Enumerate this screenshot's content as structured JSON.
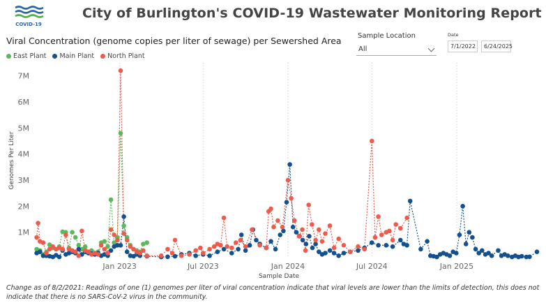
{
  "header": {
    "logo_text": "COVID-19",
    "title": "City of Burlington's COVID-19 Wastewater Monitoring Report"
  },
  "filters": {
    "sample_location_label": "Sample Location",
    "sample_location_value": "All",
    "date_label": "Date",
    "date_start": "7/1/2022",
    "date_end": "6/24/2025"
  },
  "footnote": "Change as of 8/2/2021: Readings of one (1) genomes per liter of viral concentration indicate that viral levels are lower than the limits of detection, this does not indicate that there is no SARS-CoV-2 virus in the community.",
  "colors": {
    "East Plant": "#5bb85b",
    "Main Plant": "#12508f",
    "North Plant": "#ec5b4b",
    "logo_blue": "#2a63a8",
    "logo_green": "#4fae4f"
  },
  "chart_data": {
    "type": "scatter",
    "title": "Viral Concentration (genome copies per liter of sewage) per Sewershed Area",
    "xlabel": "Sample Date",
    "ylabel": "Genomes Per Liter",
    "x_type": "date",
    "xlim": [
      "2022-07-01",
      "2025-06-24"
    ],
    "ylim": [
      0,
      7500000
    ],
    "y_ticks": [
      1000000,
      2000000,
      3000000,
      4000000,
      5000000,
      6000000,
      7000000
    ],
    "y_tick_labels": [
      "1M",
      "2M",
      "3M",
      "4M",
      "5M",
      "6M",
      "7M"
    ],
    "x_ticks": [
      "2023-01-01",
      "2023-07-01",
      "2024-01-01",
      "2024-07-01",
      "2025-01-01"
    ],
    "x_tick_labels": [
      "Jan 2023",
      "Jul 2023",
      "Jan 2024",
      "Jul 2024",
      "Jan 2025"
    ],
    "legend": "top-left",
    "grid": "vertical dotted",
    "series": [
      {
        "name": "East Plant",
        "points": [
          [
            "2022-07-05",
            350000
          ],
          [
            "2022-07-12",
            300000
          ],
          [
            "2022-07-19",
            150000
          ],
          [
            "2022-07-26",
            250000
          ],
          [
            "2022-08-02",
            520000
          ],
          [
            "2022-08-09",
            400000
          ],
          [
            "2022-08-16",
            350000
          ],
          [
            "2022-08-23",
            450000
          ],
          [
            "2022-08-30",
            1020000
          ],
          [
            "2022-09-06",
            1000000
          ],
          [
            "2022-09-13",
            400000
          ],
          [
            "2022-09-20",
            1000000
          ],
          [
            "2022-09-27",
            800000
          ],
          [
            "2022-10-04",
            500000
          ],
          [
            "2022-10-11",
            350000
          ],
          [
            "2022-10-18",
            450000
          ],
          [
            "2022-10-25",
            250000
          ],
          [
            "2022-11-01",
            300000
          ],
          [
            "2022-11-08",
            200000
          ],
          [
            "2022-11-15",
            250000
          ],
          [
            "2022-11-22",
            600000
          ],
          [
            "2022-11-29",
            650000
          ],
          [
            "2022-12-06",
            450000
          ],
          [
            "2022-12-13",
            2250000
          ],
          [
            "2022-12-20",
            600000
          ],
          [
            "2022-12-27",
            800000
          ],
          [
            "2023-01-03",
            4800000
          ],
          [
            "2023-01-10",
            1250000
          ],
          [
            "2023-01-17",
            800000
          ],
          [
            "2023-01-24",
            500000
          ],
          [
            "2023-01-31",
            350000
          ],
          [
            "2023-02-07",
            300000
          ],
          [
            "2023-02-14",
            250000
          ],
          [
            "2023-02-21",
            550000
          ],
          [
            "2023-03-01",
            600000
          ]
        ]
      },
      {
        "name": "Main Plant",
        "points": [
          [
            "2022-07-05",
            200000
          ],
          [
            "2022-07-12",
            250000
          ],
          [
            "2022-07-19",
            100000
          ],
          [
            "2022-07-26",
            100000
          ],
          [
            "2022-08-02",
            80000
          ],
          [
            "2022-08-09",
            50000
          ],
          [
            "2022-08-16",
            120000
          ],
          [
            "2022-08-23",
            50000
          ],
          [
            "2022-08-30",
            300000
          ],
          [
            "2022-09-06",
            150000
          ],
          [
            "2022-09-13",
            200000
          ],
          [
            "2022-09-20",
            250000
          ],
          [
            "2022-09-27",
            200000
          ],
          [
            "2022-10-04",
            350000
          ],
          [
            "2022-10-11",
            150000
          ],
          [
            "2022-10-18",
            250000
          ],
          [
            "2022-10-25",
            200000
          ],
          [
            "2022-11-01",
            180000
          ],
          [
            "2022-11-08",
            150000
          ],
          [
            "2022-11-15",
            200000
          ],
          [
            "2022-11-22",
            100000
          ],
          [
            "2022-11-29",
            150000
          ],
          [
            "2022-12-06",
            100000
          ],
          [
            "2022-12-13",
            300000
          ],
          [
            "2022-12-20",
            450000
          ],
          [
            "2022-12-27",
            500000
          ],
          [
            "2023-01-03",
            500000
          ],
          [
            "2023-01-10",
            1600000
          ],
          [
            "2023-01-17",
            250000
          ],
          [
            "2023-01-24",
            100000
          ],
          [
            "2023-01-31",
            80000
          ],
          [
            "2023-02-07",
            150000
          ],
          [
            "2023-02-14",
            100000
          ],
          [
            "2023-03-01",
            80000
          ],
          [
            "2023-04-01",
            50000
          ],
          [
            "2023-04-15",
            60000
          ],
          [
            "2023-05-01",
            80000
          ],
          [
            "2023-05-15",
            150000
          ],
          [
            "2023-06-01",
            200000
          ],
          [
            "2023-06-15",
            100000
          ],
          [
            "2023-07-01",
            150000
          ],
          [
            "2023-07-15",
            100000
          ],
          [
            "2023-08-01",
            250000
          ],
          [
            "2023-08-15",
            350000
          ],
          [
            "2023-09-01",
            200000
          ],
          [
            "2023-09-15",
            350000
          ],
          [
            "2023-09-22",
            900000
          ],
          [
            "2023-10-01",
            300000
          ],
          [
            "2023-10-10",
            500000
          ],
          [
            "2023-10-17",
            1100000
          ],
          [
            "2023-10-24",
            700000
          ],
          [
            "2023-11-01",
            550000
          ],
          [
            "2023-11-15",
            400000
          ],
          [
            "2023-11-25",
            650000
          ],
          [
            "2023-12-05",
            350000
          ],
          [
            "2023-12-15",
            900000
          ],
          [
            "2023-12-22",
            1050000
          ],
          [
            "2023-12-29",
            2150000
          ],
          [
            "2024-01-05",
            3600000
          ],
          [
            "2024-01-12",
            1200000
          ],
          [
            "2024-01-19",
            1000000
          ],
          [
            "2024-01-26",
            850000
          ],
          [
            "2024-02-02",
            700000
          ],
          [
            "2024-02-09",
            550000
          ],
          [
            "2024-02-16",
            850000
          ],
          [
            "2024-02-23",
            400000
          ],
          [
            "2024-03-01",
            550000
          ],
          [
            "2024-03-08",
            250000
          ],
          [
            "2024-03-15",
            150000
          ],
          [
            "2024-03-22",
            200000
          ],
          [
            "2024-04-01",
            300000
          ],
          [
            "2024-04-10",
            200000
          ],
          [
            "2024-04-20",
            100000
          ],
          [
            "2024-05-01",
            200000
          ],
          [
            "2024-05-15",
            250000
          ],
          [
            "2024-06-01",
            300000
          ],
          [
            "2024-06-15",
            400000
          ],
          [
            "2024-07-01",
            600000
          ],
          [
            "2024-07-15",
            500000
          ],
          [
            "2024-08-01",
            500000
          ],
          [
            "2024-08-15",
            450000
          ],
          [
            "2024-09-01",
            700000
          ],
          [
            "2024-09-08",
            550000
          ],
          [
            "2024-09-15",
            500000
          ],
          [
            "2024-09-22",
            2200000
          ],
          [
            "2024-10-15",
            350000
          ],
          [
            "2024-10-29",
            650000
          ],
          [
            "2024-11-05",
            100000
          ],
          [
            "2024-11-12",
            80000
          ],
          [
            "2024-11-19",
            50000
          ],
          [
            "2024-11-26",
            150000
          ],
          [
            "2024-12-03",
            200000
          ],
          [
            "2024-12-10",
            150000
          ],
          [
            "2024-12-17",
            100000
          ],
          [
            "2024-12-24",
            250000
          ],
          [
            "2024-12-31",
            200000
          ],
          [
            "2025-01-07",
            900000
          ],
          [
            "2025-01-14",
            2000000
          ],
          [
            "2025-01-21",
            550000
          ],
          [
            "2025-01-28",
            1000000
          ],
          [
            "2025-02-04",
            800000
          ],
          [
            "2025-02-11",
            350000
          ],
          [
            "2025-02-18",
            200000
          ],
          [
            "2025-02-25",
            300000
          ],
          [
            "2025-03-04",
            150000
          ],
          [
            "2025-03-11",
            200000
          ],
          [
            "2025-03-18",
            100000
          ],
          [
            "2025-04-01",
            300000
          ],
          [
            "2025-04-08",
            100000
          ],
          [
            "2025-04-15",
            150000
          ],
          [
            "2025-04-22",
            100000
          ],
          [
            "2025-05-01",
            50000
          ],
          [
            "2025-05-08",
            100000
          ],
          [
            "2025-05-15",
            50000
          ],
          [
            "2025-05-22",
            80000
          ],
          [
            "2025-06-01",
            50000
          ],
          [
            "2025-06-08",
            60000
          ],
          [
            "2025-06-24",
            250000
          ]
        ]
      },
      {
        "name": "North Plant",
        "points": [
          [
            "2022-07-05",
            800000
          ],
          [
            "2022-07-08",
            1350000
          ],
          [
            "2022-07-12",
            650000
          ],
          [
            "2022-07-19",
            600000
          ],
          [
            "2022-07-26",
            200000
          ],
          [
            "2022-08-02",
            350000
          ],
          [
            "2022-08-09",
            450000
          ],
          [
            "2022-08-16",
            350000
          ],
          [
            "2022-08-23",
            400000
          ],
          [
            "2022-08-30",
            350000
          ],
          [
            "2022-09-06",
            900000
          ],
          [
            "2022-09-13",
            350000
          ],
          [
            "2022-09-20",
            300000
          ],
          [
            "2022-09-27",
            250000
          ],
          [
            "2022-10-04",
            100000
          ],
          [
            "2022-10-11",
            1050000
          ],
          [
            "2022-10-18",
            300000
          ],
          [
            "2022-10-25",
            250000
          ],
          [
            "2022-11-01",
            150000
          ],
          [
            "2022-11-08",
            200000
          ],
          [
            "2022-11-15",
            150000
          ],
          [
            "2022-11-22",
            500000
          ],
          [
            "2022-11-29",
            350000
          ],
          [
            "2022-12-06",
            200000
          ],
          [
            "2022-12-13",
            1100000
          ],
          [
            "2022-12-20",
            900000
          ],
          [
            "2022-12-27",
            700000
          ],
          [
            "2023-01-03",
            7200000
          ],
          [
            "2023-01-10",
            950000
          ],
          [
            "2023-01-17",
            700000
          ],
          [
            "2023-01-24",
            450000
          ],
          [
            "2023-01-31",
            350000
          ],
          [
            "2023-02-07",
            250000
          ],
          [
            "2023-02-14",
            200000
          ],
          [
            "2023-02-21",
            300000
          ],
          [
            "2023-03-01",
            100000
          ],
          [
            "2023-04-01",
            100000
          ],
          [
            "2023-04-15",
            350000
          ],
          [
            "2023-04-25",
            200000
          ],
          [
            "2023-05-01",
            700000
          ],
          [
            "2023-05-15",
            100000
          ],
          [
            "2023-06-01",
            150000
          ],
          [
            "2023-06-15",
            300000
          ],
          [
            "2023-06-25",
            400000
          ],
          [
            "2023-07-01",
            200000
          ],
          [
            "2023-07-15",
            350000
          ],
          [
            "2023-07-25",
            450000
          ],
          [
            "2023-08-01",
            550000
          ],
          [
            "2023-08-08",
            500000
          ],
          [
            "2023-08-15",
            1550000
          ],
          [
            "2023-08-22",
            450000
          ],
          [
            "2023-09-01",
            400000
          ],
          [
            "2023-09-10",
            600000
          ],
          [
            "2023-09-20",
            700000
          ],
          [
            "2023-10-01",
            450000
          ],
          [
            "2023-10-15",
            1100000
          ],
          [
            "2023-11-01",
            500000
          ],
          [
            "2023-11-15",
            400000
          ],
          [
            "2023-11-20",
            1800000
          ],
          [
            "2023-11-25",
            1900000
          ],
          [
            "2023-12-01",
            1200000
          ],
          [
            "2023-12-10",
            1450000
          ],
          [
            "2023-12-20",
            1200000
          ],
          [
            "2024-01-01",
            3000000
          ],
          [
            "2024-01-08",
            2300000
          ],
          [
            "2024-01-15",
            1450000
          ],
          [
            "2024-01-25",
            850000
          ],
          [
            "2024-02-01",
            1100000
          ],
          [
            "2024-02-08",
            300000
          ],
          [
            "2024-02-15",
            2050000
          ],
          [
            "2024-02-22",
            1300000
          ],
          [
            "2024-03-01",
            700000
          ],
          [
            "2024-03-08",
            1100000
          ],
          [
            "2024-03-15",
            650000
          ],
          [
            "2024-03-22",
            950000
          ],
          [
            "2024-04-01",
            1250000
          ],
          [
            "2024-04-10",
            400000
          ],
          [
            "2024-04-20",
            750000
          ],
          [
            "2024-05-01",
            500000
          ],
          [
            "2024-05-15",
            250000
          ],
          [
            "2024-06-01",
            450000
          ],
          [
            "2024-06-15",
            350000
          ],
          [
            "2024-07-01",
            4500000
          ],
          [
            "2024-07-08",
            800000
          ],
          [
            "2024-07-15",
            1600000
          ],
          [
            "2024-07-22",
            900000
          ],
          [
            "2024-08-01",
            1000000
          ],
          [
            "2024-08-08",
            1050000
          ],
          [
            "2024-08-15",
            700000
          ],
          [
            "2024-08-22",
            1300000
          ],
          [
            "2024-09-01",
            1150000
          ],
          [
            "2024-09-15",
            1550000
          ]
        ]
      }
    ]
  }
}
